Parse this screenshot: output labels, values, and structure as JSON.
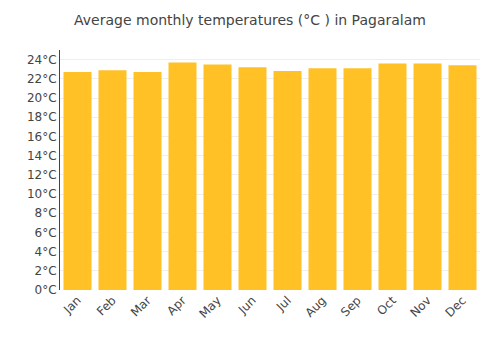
{
  "chart_data": {
    "type": "bar",
    "title": "Average monthly temperatures (°C ) in Pagaralam",
    "categories": [
      "Jan",
      "Feb",
      "Mar",
      "Apr",
      "May",
      "Jun",
      "Jul",
      "Aug",
      "Sep",
      "Oct",
      "Nov",
      "Dec"
    ],
    "values": [
      22.7,
      22.9,
      22.7,
      23.7,
      23.5,
      23.2,
      22.8,
      23.1,
      23.1,
      23.6,
      23.6,
      23.4
    ],
    "color": "#FFC125",
    "ylim": [
      0,
      25
    ],
    "yticks": [
      {
        "value": 0,
        "label": "0°C"
      },
      {
        "value": 2,
        "label": "2°C"
      },
      {
        "value": 4,
        "label": "4°C"
      },
      {
        "value": 6,
        "label": "6°C"
      },
      {
        "value": 8,
        "label": "8°C"
      },
      {
        "value": 10,
        "label": "10°C"
      },
      {
        "value": 12,
        "label": "12°C"
      },
      {
        "value": 14,
        "label": "14°C"
      },
      {
        "value": 16,
        "label": "16°C"
      },
      {
        "value": 18,
        "label": "18°C"
      },
      {
        "value": 20,
        "label": "20°C"
      },
      {
        "value": 22,
        "label": "22°C"
      },
      {
        "value": 24,
        "label": "24°C"
      }
    ],
    "grid": true
  }
}
